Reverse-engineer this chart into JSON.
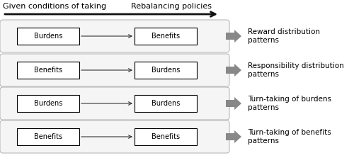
{
  "title_left": "Given conditions of taking",
  "title_right": "Rebalancing policies",
  "rows": [
    {
      "left_label": "Burdens",
      "right_label": "Benefits",
      "output_label": "Reward distribution\npatterns"
    },
    {
      "left_label": "Benefits",
      "right_label": "Burdens",
      "output_label": "Responsibility distribution\npatterns"
    },
    {
      "left_label": "Burdens",
      "right_label": "Burdens",
      "output_label": "Turn-taking of burdens\npatterns"
    },
    {
      "left_label": "Benefits",
      "right_label": "Benefits",
      "output_label": "Turn-taking of benefits\npatterns"
    }
  ],
  "bg_color": "#ffffff",
  "box_color": "#ffffff",
  "box_edge_color": "#000000",
  "outer_box_fill": "#f5f5f5",
  "outer_box_edge": "#b0b0b0",
  "inner_arrow_color": "#333333",
  "gray_arrow_color": "#888888",
  "main_arrow_color": "#111111",
  "text_color": "#000000",
  "fontsize": 7.0,
  "header_fontsize": 8.0,
  "output_fontsize": 7.5
}
